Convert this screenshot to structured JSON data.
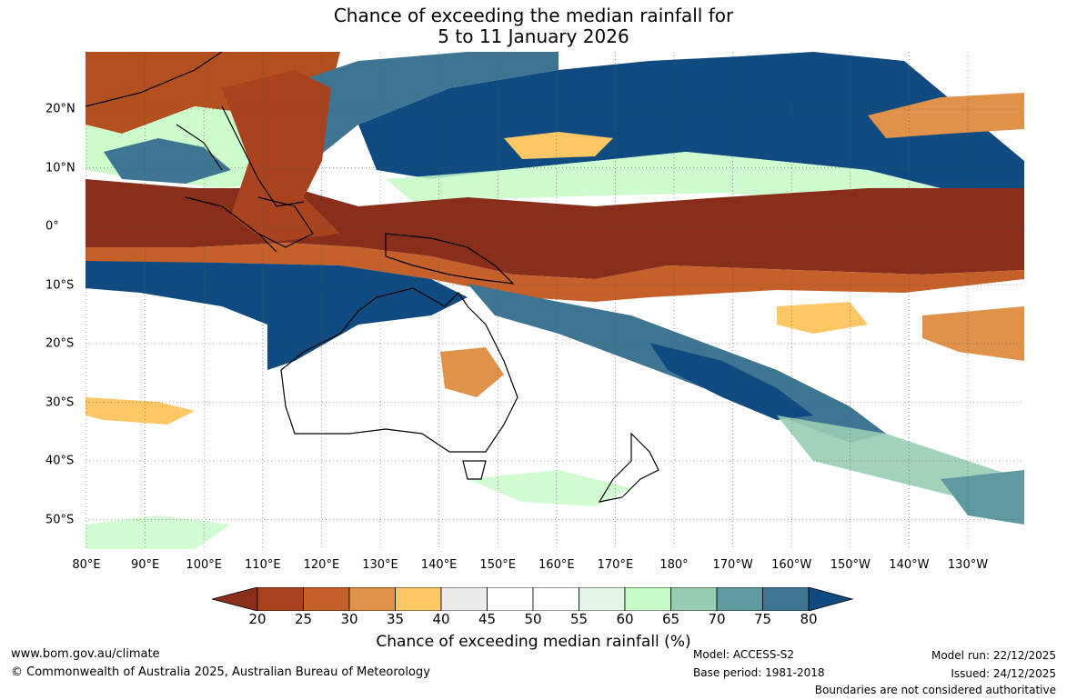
{
  "title": {
    "line1": "Chance of exceeding the median rainfall for",
    "line2": "5 to 11 January 2026"
  },
  "map": {
    "longitude_labels": [
      "80°E",
      "90°E",
      "100°E",
      "110°E",
      "120°E",
      "130°E",
      "140°E",
      "150°E",
      "160°E",
      "170°E",
      "180°",
      "170°W",
      "160°W",
      "150°W",
      "140°W",
      "130°W"
    ],
    "latitude_labels": [
      "20°N",
      "10°N",
      "0°",
      "10°S",
      "20°S",
      "30°S",
      "40°S",
      "50°S"
    ]
  },
  "colorbar": {
    "ticks": [
      "20",
      "25",
      "30",
      "35",
      "40",
      "45",
      "50",
      "55",
      "60",
      "65",
      "70",
      "75",
      "80"
    ],
    "colors": [
      "#8a2e1c",
      "#a8421f",
      "#c5602a",
      "#e0924a",
      "#fdc766",
      "#ececea",
      "#ffffff",
      "#ffffff",
      "#e6f5e8",
      "#c7fbc7",
      "#99cdb2",
      "#5f9aa0",
      "#3e7592",
      "#0f4a80"
    ],
    "label": "Chance of exceeding median rainfall (%)"
  },
  "footer": {
    "website": "www.bom.gov.au/climate",
    "copyright": "© Commonwealth of Australia 2025, Australian Bureau of Meteorology",
    "model": "Model: ACCESS-S2",
    "base_period": "Base period: 1981-2018",
    "model_run": "Model run: 22/12/2025",
    "issued": "Issued: 24/12/2025",
    "disclaimer": "Boundaries are not considered authoritative"
  }
}
